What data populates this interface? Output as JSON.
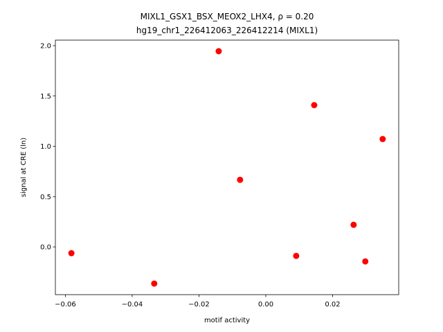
{
  "chart_data": {
    "type": "scatter",
    "title": "MIXL1_GSX1_BSX_MEOX2_LHX4, ρ = 0.20",
    "subtitle": "hg19_chr1_226412063_226412214 (MIXL1)",
    "x_label": "motif activity",
    "y_label": "signal at CRE (ln)",
    "color": "#ff0000",
    "x": [
      -0.0582,
      -0.0334,
      -0.0141,
      -0.0077,
      0.0091,
      0.0145,
      0.0263,
      0.0298,
      0.035
    ],
    "values": [
      -0.062,
      -0.364,
      1.945,
      0.667,
      -0.089,
      1.409,
      0.22,
      -0.144,
      1.072
    ],
    "xlim": [
      -0.063,
      0.0398
    ],
    "ylim": [
      -0.474,
      2.055
    ],
    "xticks": [
      {
        "value": -0.06,
        "label": "−0.06"
      },
      {
        "value": -0.04,
        "label": "−0.04"
      },
      {
        "value": -0.02,
        "label": "−0.02"
      },
      {
        "value": 0,
        "label": "0.00"
      },
      0.02
    ],
    "yticks": [
      {
        "value": 0,
        "label": "0.0"
      },
      0.5,
      {
        "value": 1,
        "label": "1.0"
      },
      1.5,
      {
        "value": 2,
        "label": "2.0"
      }
    ]
  }
}
